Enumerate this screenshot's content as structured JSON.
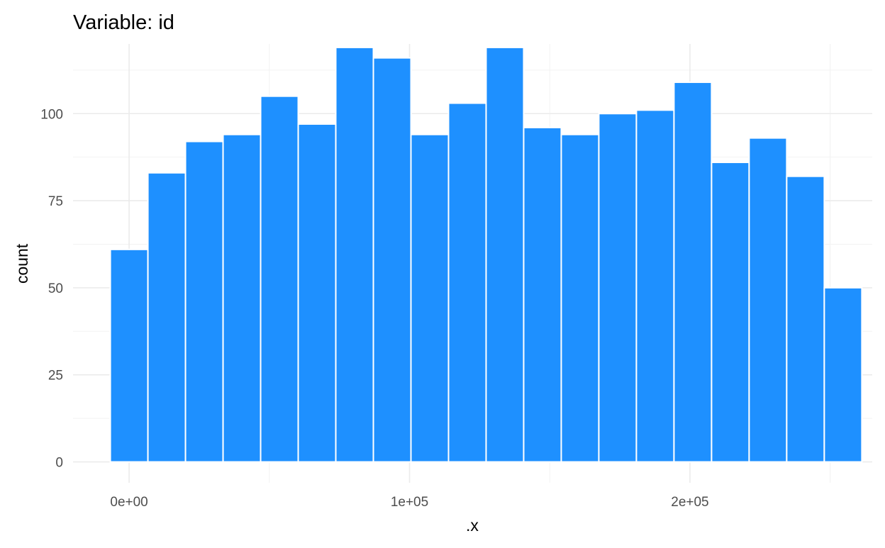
{
  "chart_data": {
    "type": "bar",
    "title": "Variable: id",
    "xlabel": ".x",
    "ylabel": "count",
    "x_ticks": [
      {
        "value": 0,
        "label": "0e+00"
      },
      {
        "value": 100000,
        "label": "1e+05"
      },
      {
        "value": 200000,
        "label": "2e+05"
      }
    ],
    "y_ticks": [
      0,
      25,
      50,
      75,
      100
    ],
    "xlim": [
      -20000,
      265000
    ],
    "ylim": [
      -6,
      120
    ],
    "grid": true,
    "bar_color": "#1E90FF",
    "bins": [
      {
        "x_start": -6700,
        "x_end": 6700,
        "count": 61
      },
      {
        "x_start": 6700,
        "x_end": 20100,
        "count": 83
      },
      {
        "x_start": 20100,
        "x_end": 33500,
        "count": 92
      },
      {
        "x_start": 33500,
        "x_end": 46900,
        "count": 94
      },
      {
        "x_start": 46900,
        "x_end": 60300,
        "count": 105
      },
      {
        "x_start": 60300,
        "x_end": 73700,
        "count": 97
      },
      {
        "x_start": 73700,
        "x_end": 87100,
        "count": 119
      },
      {
        "x_start": 87100,
        "x_end": 100500,
        "count": 116
      },
      {
        "x_start": 100500,
        "x_end": 113900,
        "count": 94
      },
      {
        "x_start": 113900,
        "x_end": 127300,
        "count": 103
      },
      {
        "x_start": 127300,
        "x_end": 140700,
        "count": 119
      },
      {
        "x_start": 140700,
        "x_end": 154100,
        "count": 96
      },
      {
        "x_start": 154100,
        "x_end": 167500,
        "count": 94
      },
      {
        "x_start": 167500,
        "x_end": 180900,
        "count": 100
      },
      {
        "x_start": 180900,
        "x_end": 194300,
        "count": 101
      },
      {
        "x_start": 194300,
        "x_end": 207700,
        "count": 109
      },
      {
        "x_start": 207700,
        "x_end": 221100,
        "count": 86
      },
      {
        "x_start": 221100,
        "x_end": 234500,
        "count": 93
      },
      {
        "x_start": 234500,
        "x_end": 247900,
        "count": 82
      },
      {
        "x_start": 247900,
        "x_end": 261300,
        "count": 50
      }
    ]
  }
}
